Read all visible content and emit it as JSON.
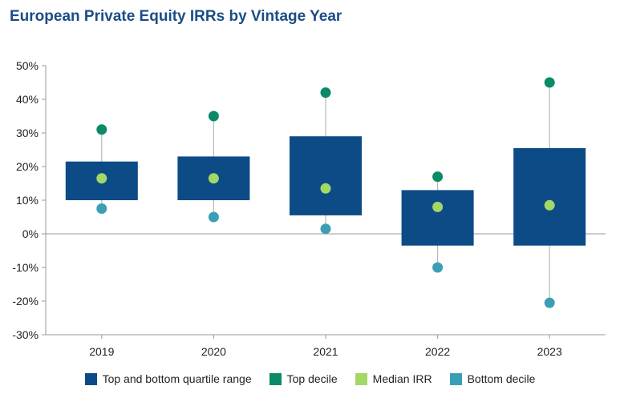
{
  "title": "European Private Equity IRRs by Vintage Year",
  "colors": {
    "quartile_box": "#0d4b87",
    "top_decile": "#0a8a68",
    "median": "#a3d866",
    "bottom_decile": "#3a9fb5",
    "whisker": "#b8b8b8",
    "axis": "#9a9a9a"
  },
  "legend": [
    {
      "label": "Top and bottom quartile range",
      "color": "#0d4b87"
    },
    {
      "label": "Top decile",
      "color": "#0a8a68"
    },
    {
      "label": "Median IRR",
      "color": "#a3d866"
    },
    {
      "label": "Bottom decile",
      "color": "#3a9fb5"
    }
  ],
  "chart_data": {
    "type": "box",
    "title": "European Private Equity IRRs by Vintage Year",
    "xlabel": "",
    "ylabel": "",
    "ylim": [
      -30,
      50
    ],
    "y_ticks": [
      50,
      40,
      30,
      20,
      10,
      0,
      -10,
      -20,
      -30
    ],
    "y_tick_labels": [
      "50%",
      "40%",
      "30%",
      "20%",
      "10%",
      "0%",
      "-10%",
      "-20%",
      "-30%"
    ],
    "categories": [
      "2019",
      "2020",
      "2021",
      "2022",
      "2023"
    ],
    "series": [
      {
        "name": "Top and bottom quartile range",
        "upper": [
          21.5,
          23,
          29,
          13,
          25.5
        ],
        "lower": [
          10,
          10,
          5.5,
          -3.5,
          -3.5
        ]
      },
      {
        "name": "Top decile",
        "values": [
          31,
          35,
          42,
          17,
          45
        ]
      },
      {
        "name": "Median IRR",
        "values": [
          16.5,
          16.5,
          13.5,
          8,
          8.5
        ]
      },
      {
        "name": "Bottom decile",
        "values": [
          7.5,
          5,
          1.5,
          -10,
          -20.5
        ]
      }
    ],
    "grid": false,
    "legend_position": "bottom"
  }
}
